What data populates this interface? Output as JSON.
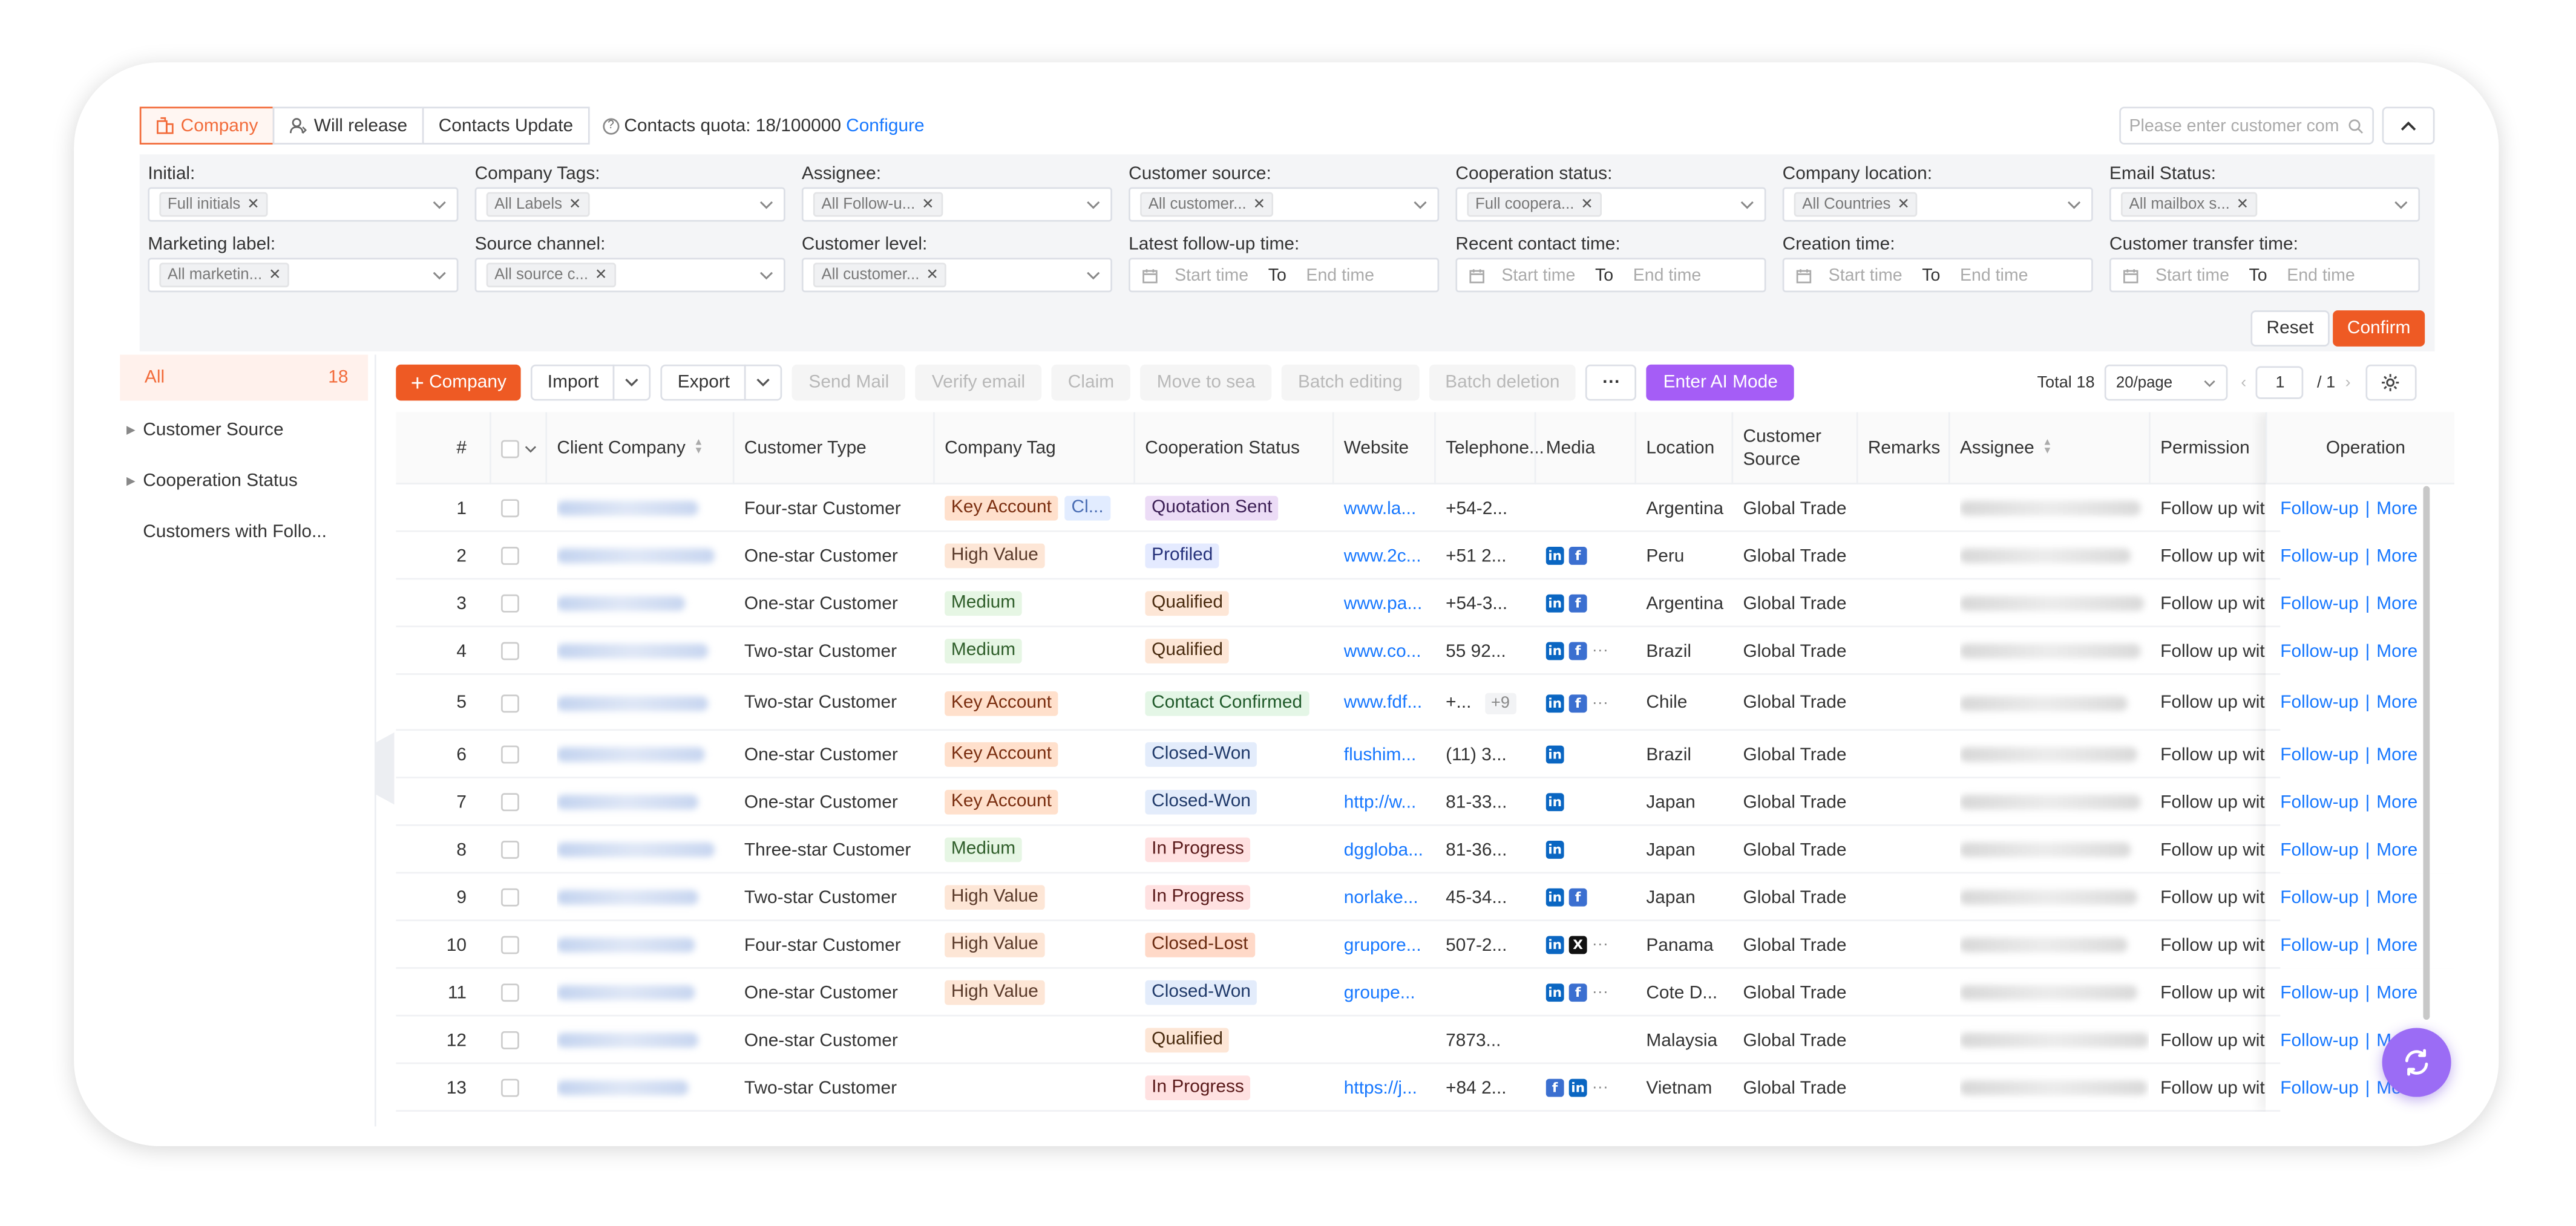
{
  "tabs": [
    {
      "label": "Company",
      "active": true
    },
    {
      "label": "Will release",
      "active": false
    },
    {
      "label": "Contacts Update",
      "active": false
    }
  ],
  "quota": {
    "label": "Contacts quota: 18/100000",
    "link": "Configure"
  },
  "search": {
    "placeholder": "Please enter customer com"
  },
  "filters": {
    "row1": [
      {
        "label": "Initial:",
        "value": "Full initials"
      },
      {
        "label": "Company Tags:",
        "value": "All Labels"
      },
      {
        "label": "Assignee:",
        "value": "All Follow-u..."
      },
      {
        "label": "Customer source:",
        "value": "All customer..."
      },
      {
        "label": "Cooperation status:",
        "value": "Full coopera..."
      },
      {
        "label": "Company location:",
        "value": "All Countries"
      },
      {
        "label": "Email Status:",
        "value": "All mailbox s..."
      }
    ],
    "row2": [
      {
        "label": "Marketing label:",
        "value": "All marketin..."
      },
      {
        "label": "Source channel:",
        "value": "All source c..."
      },
      {
        "label": "Customer level:",
        "value": "All customer..."
      }
    ],
    "dates": [
      {
        "label": "Latest follow-up time:",
        "start": "Start time",
        "to": "To",
        "end": "End time"
      },
      {
        "label": "Recent contact time:",
        "start": "Start time",
        "to": "To",
        "end": "End time"
      },
      {
        "label": "Creation time:",
        "start": "Start time",
        "to": "To",
        "end": "End time"
      },
      {
        "label": "Customer transfer time:",
        "start": "Start time",
        "to": "To",
        "end": "End time"
      }
    ],
    "reset": "Reset",
    "confirm": "Confirm"
  },
  "sidebar": {
    "all_label": "All",
    "all_count": "18",
    "items": [
      {
        "label": "Customer Source",
        "expandable": true
      },
      {
        "label": "Cooperation Status",
        "expandable": true
      },
      {
        "label": "Customers with Follo...",
        "expandable": false
      }
    ]
  },
  "toolbar": {
    "add_company": "Company",
    "import": "Import",
    "export": "Export",
    "send_mail": "Send Mail",
    "verify_email": "Verify email",
    "claim": "Claim",
    "move_to_sea": "Move to sea",
    "batch_editing": "Batch editing",
    "batch_deletion": "Batch deletion",
    "more": "···",
    "ai_mode": "Enter AI Mode"
  },
  "pagination": {
    "total": "Total 18",
    "page_size": "20/page",
    "page": "1",
    "pages": "/ 1"
  },
  "columns": [
    "#",
    "Client Company",
    "Customer Type",
    "Company Tag",
    "Cooperation Status",
    "Website",
    "Telephone...",
    "Media",
    "Location",
    "Customer Source",
    "Remarks",
    "Assignee",
    "Permission",
    "Operation"
  ],
  "rows": [
    {
      "num": "1",
      "type": "Four-star Customer",
      "tags": [
        {
          "t": "Key Account",
          "c": "t-key"
        },
        {
          "t": "Cl...",
          "c": "t-cl"
        }
      ],
      "status": {
        "t": "Quotation Sent",
        "c": "s-quote"
      },
      "website": "www.la...",
      "phone": "+54-2...",
      "media": [],
      "location": "Argentina",
      "source": "Global Trade",
      "permission": "Follow up with"
    },
    {
      "num": "2",
      "type": "One-star Customer",
      "tags": [
        {
          "t": "High Value",
          "c": "t-high"
        }
      ],
      "status": {
        "t": "Profiled",
        "c": "s-prof"
      },
      "website": "www.2c...",
      "phone": "+51 2...",
      "media": [
        "in",
        "f"
      ],
      "location": "Peru",
      "source": "Global Trade",
      "permission": "Follow up with"
    },
    {
      "num": "3",
      "type": "One-star Customer",
      "tags": [
        {
          "t": "Medium",
          "c": "t-med"
        }
      ],
      "status": {
        "t": "Qualified",
        "c": "s-qual"
      },
      "website": "www.pa...",
      "phone": "+54-3...",
      "media": [
        "in",
        "f"
      ],
      "location": "Argentina",
      "source": "Global Trade",
      "permission": "Follow up with"
    },
    {
      "num": "4",
      "type": "Two-star Customer",
      "tags": [
        {
          "t": "Medium",
          "c": "t-med"
        }
      ],
      "status": {
        "t": "Qualified",
        "c": "s-qual"
      },
      "website": "www.co...",
      "phone": "55 92...",
      "media": [
        "in",
        "f",
        "..."
      ],
      "location": "Brazil",
      "source": "Global Trade",
      "permission": "Follow up with"
    },
    {
      "num": "5",
      "type": "Two-star Customer",
      "tags": [
        {
          "t": "Key Account",
          "c": "t-key"
        }
      ],
      "status": {
        "t": "Contact Confirmed",
        "c": "s-conf"
      },
      "website": "www.fdf...",
      "phone": "+...",
      "extra": "+9",
      "media": [
        "in",
        "f",
        "..."
      ],
      "location": "Chile",
      "source": "Global Trade",
      "permission": "Follow up with"
    },
    {
      "num": "6",
      "type": "One-star Customer",
      "tags": [
        {
          "t": "Key Account",
          "c": "t-key"
        }
      ],
      "status": {
        "t": "Closed-Won",
        "c": "s-won"
      },
      "website": "flushim...",
      "phone": "(11) 3...",
      "media": [
        "in"
      ],
      "location": "Brazil",
      "source": "Global Trade",
      "permission": "Follow up with"
    },
    {
      "num": "7",
      "type": "One-star Customer",
      "tags": [
        {
          "t": "Key Account",
          "c": "t-key"
        }
      ],
      "status": {
        "t": "Closed-Won",
        "c": "s-won"
      },
      "website": "http://w...",
      "phone": "81-33...",
      "media": [
        "in"
      ],
      "location": "Japan",
      "source": "Global Trade",
      "permission": "Follow up with"
    },
    {
      "num": "8",
      "type": "Three-star Customer",
      "tags": [
        {
          "t": "Medium",
          "c": "t-med"
        }
      ],
      "status": {
        "t": "In Progress",
        "c": "s-prog"
      },
      "website": "dggloba...",
      "phone": "81-36...",
      "media": [
        "in"
      ],
      "location": "Japan",
      "source": "Global Trade",
      "permission": "Follow up with"
    },
    {
      "num": "9",
      "type": "Two-star Customer",
      "tags": [
        {
          "t": "High Value",
          "c": "t-high"
        }
      ],
      "status": {
        "t": "In Progress",
        "c": "s-prog"
      },
      "website": "norlake...",
      "phone": "45-34...",
      "media": [
        "in",
        "f"
      ],
      "location": "Japan",
      "source": "Global Trade",
      "permission": "Follow up with"
    },
    {
      "num": "10",
      "type": "Four-star Customer",
      "tags": [
        {
          "t": "High Value",
          "c": "t-high"
        }
      ],
      "status": {
        "t": "Closed-Lost",
        "c": "s-lost"
      },
      "website": "grupore...",
      "phone": "507-2...",
      "media": [
        "in",
        "x",
        "..."
      ],
      "location": "Panama",
      "source": "Global Trade",
      "permission": "Follow up with"
    },
    {
      "num": "11",
      "type": "One-star Customer",
      "tags": [
        {
          "t": "High Value",
          "c": "t-high"
        }
      ],
      "status": {
        "t": "Closed-Won",
        "c": "s-won"
      },
      "website": "groupe...",
      "phone": "",
      "media": [
        "in",
        "f",
        "..."
      ],
      "location": "Cote D...",
      "source": "Global Trade",
      "permission": "Follow up with"
    },
    {
      "num": "12",
      "type": "One-star Customer",
      "tags": [],
      "status": {
        "t": "Qualified",
        "c": "s-qual"
      },
      "website": "",
      "phone": "7873...",
      "media": [],
      "location": "Malaysia",
      "source": "Global Trade",
      "permission": "Follow up with"
    },
    {
      "num": "13",
      "type": "Two-star Customer",
      "tags": [],
      "status": {
        "t": "In Progress",
        "c": "s-prog"
      },
      "website": "https://j...",
      "phone": "+84 2...",
      "media": [
        "f",
        "in",
        "..."
      ],
      "location": "Vietnam",
      "source": "Global Trade",
      "permission": "Follow up with"
    }
  ],
  "operation": {
    "follow_up": "Follow-up",
    "sep": "|",
    "more": "More"
  },
  "colors": {
    "accent": "#ee5a24",
    "ai": "#a55df6",
    "link": "#1677ff"
  }
}
